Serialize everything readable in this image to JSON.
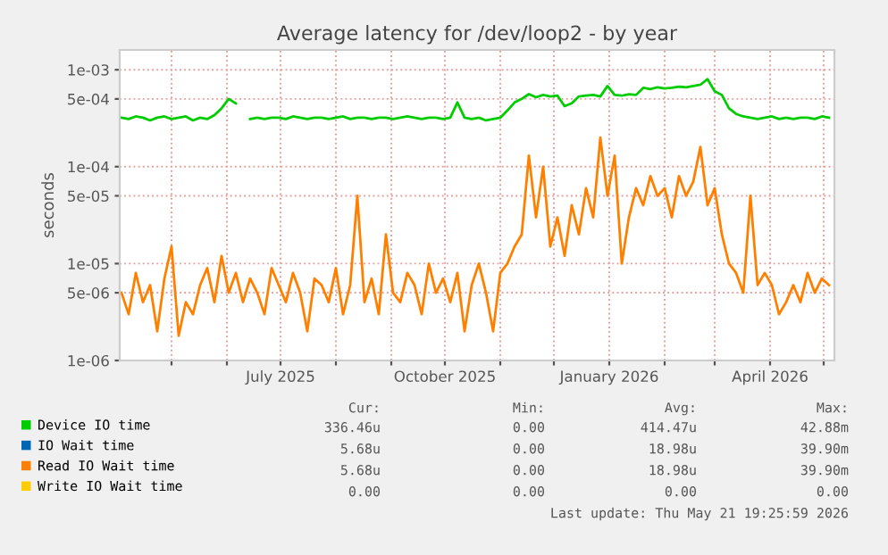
{
  "chart_data": {
    "type": "line",
    "title": "Average latency for /dev/loop2 - by year",
    "ylabel": "seconds",
    "log": "y",
    "ylim": [
      1e-06,
      0.0016
    ],
    "yticks": [
      {
        "value": 1e-06,
        "label": "1e-06"
      },
      {
        "value": 5e-06,
        "label": "5e-06"
      },
      {
        "value": 1e-05,
        "label": "1e-05"
      },
      {
        "value": 5e-05,
        "label": "5e-05"
      },
      {
        "value": 0.0001,
        "label": "1e-04"
      },
      {
        "value": 0.0005,
        "label": "5e-04"
      },
      {
        "value": 0.001,
        "label": "1e-03"
      }
    ],
    "xlim": [
      "2025-04-02",
      "2026-05-07"
    ],
    "xticks": [
      {
        "value": "2025-05-01",
        "label": null
      },
      {
        "value": "2025-06-01",
        "label": null
      },
      {
        "value": "2025-07-01",
        "label": "July 2025"
      },
      {
        "value": "2025-08-01",
        "label": null
      },
      {
        "value": "2025-09-01",
        "label": null
      },
      {
        "value": "2025-10-01",
        "label": "October 2025"
      },
      {
        "value": "2025-11-01",
        "label": null
      },
      {
        "value": "2025-12-01",
        "label": null
      },
      {
        "value": "2026-01-01",
        "label": "January 2026"
      },
      {
        "value": "2026-02-01",
        "label": null
      },
      {
        "value": "2026-03-01",
        "label": null
      },
      {
        "value": "2026-04-01",
        "label": "April 2026"
      },
      {
        "value": "2026-05-01",
        "label": null
      }
    ],
    "x": [
      "2025-04-03",
      "2025-04-07",
      "2025-04-11",
      "2025-04-15",
      "2025-04-19",
      "2025-04-23",
      "2025-04-27",
      "2025-05-01",
      "2025-05-05",
      "2025-05-09",
      "2025-05-13",
      "2025-05-17",
      "2025-05-21",
      "2025-05-25",
      "2025-05-29",
      "2025-06-02",
      "2025-06-06",
      "2025-06-10",
      "2025-06-14",
      "2025-06-18",
      "2025-06-22",
      "2025-06-26",
      "2025-06-30",
      "2025-07-04",
      "2025-07-08",
      "2025-07-12",
      "2025-07-16",
      "2025-07-20",
      "2025-07-24",
      "2025-07-28",
      "2025-08-01",
      "2025-08-05",
      "2025-08-09",
      "2025-08-13",
      "2025-08-17",
      "2025-08-21",
      "2025-08-25",
      "2025-08-29",
      "2025-09-02",
      "2025-09-06",
      "2025-09-10",
      "2025-09-14",
      "2025-09-18",
      "2025-09-22",
      "2025-09-26",
      "2025-09-30",
      "2025-10-04",
      "2025-10-08",
      "2025-10-12",
      "2025-10-16",
      "2025-10-20",
      "2025-10-24",
      "2025-10-28",
      "2025-11-01",
      "2025-11-05",
      "2025-11-09",
      "2025-11-13",
      "2025-11-17",
      "2025-11-21",
      "2025-11-25",
      "2025-11-29",
      "2025-12-03",
      "2025-12-07",
      "2025-12-11",
      "2025-12-15",
      "2025-12-19",
      "2025-12-23",
      "2025-12-27",
      "2025-12-31",
      "2026-01-04",
      "2026-01-08",
      "2026-01-12",
      "2026-01-16",
      "2026-01-20",
      "2026-01-24",
      "2026-01-28",
      "2026-02-01",
      "2026-02-05",
      "2026-02-09",
      "2026-02-13",
      "2026-02-17",
      "2026-02-21",
      "2026-02-25",
      "2026-03-01",
      "2026-03-05",
      "2026-03-09",
      "2026-03-13",
      "2026-03-17",
      "2026-03-21",
      "2026-03-25",
      "2026-03-29",
      "2026-04-02",
      "2026-04-06",
      "2026-04-10",
      "2026-04-14",
      "2026-04-18",
      "2026-04-22",
      "2026-04-26",
      "2026-04-30",
      "2026-05-04"
    ],
    "series": [
      {
        "name": "Device IO time",
        "color": "#00cc00",
        "values": [
          0.00032,
          0.00031,
          0.00033,
          0.00032,
          0.0003,
          0.00032,
          0.00033,
          0.00031,
          0.00032,
          0.00033,
          0.0003,
          0.00032,
          0.00031,
          0.00034,
          0.0004,
          0.0005,
          0.00045,
          null,
          0.00031,
          0.00032,
          0.00031,
          0.00032,
          0.00032,
          0.00031,
          0.00033,
          0.00032,
          0.00031,
          0.00032,
          0.00032,
          0.00031,
          0.00032,
          0.00033,
          0.00031,
          0.00032,
          0.00032,
          0.00031,
          0.00032,
          0.00032,
          0.00031,
          0.00032,
          0.00033,
          0.00032,
          0.00031,
          0.00032,
          0.00032,
          0.00031,
          0.00032,
          0.00046,
          0.00032,
          0.00031,
          0.00032,
          0.0003,
          0.00031,
          0.00032,
          0.00038,
          0.00046,
          0.0005,
          0.00056,
          0.00052,
          0.00055,
          0.00053,
          0.00054,
          0.00042,
          0.00045,
          0.00053,
          0.00054,
          0.00055,
          0.00053,
          0.00068,
          0.00055,
          0.00054,
          0.00056,
          0.00055,
          0.00065,
          0.00063,
          0.00066,
          0.00064,
          0.00065,
          0.00067,
          0.00066,
          0.00068,
          0.0007,
          0.0008,
          0.0006,
          0.00055,
          0.0004,
          0.00035,
          0.00033,
          0.00032,
          0.00031,
          0.00032,
          0.00033,
          0.00031,
          0.00032,
          0.00031,
          0.00032,
          0.00032,
          0.00031,
          0.00033,
          0.00032
        ]
      },
      {
        "name": "IO Wait time",
        "color": "#0066b3",
        "values": [
          null,
          null,
          null,
          null,
          null,
          null,
          null,
          null,
          null,
          null,
          null,
          null,
          null,
          null,
          null,
          null,
          null,
          null,
          null,
          null,
          null,
          null,
          null,
          null,
          null,
          null,
          null,
          null,
          null,
          null,
          null,
          null,
          null,
          null,
          null,
          null,
          null,
          null,
          null,
          null,
          null,
          null,
          null,
          null,
          null,
          null,
          null,
          null,
          null,
          null,
          null,
          null,
          null,
          null,
          null,
          null,
          null,
          null,
          null,
          null,
          null,
          null,
          null,
          null,
          null,
          null,
          null,
          null,
          null,
          null,
          null,
          null,
          null,
          null,
          null,
          null,
          null,
          null,
          null,
          null,
          null,
          null,
          null,
          null,
          null,
          null,
          null,
          null,
          null,
          null,
          null,
          null,
          null,
          null,
          null,
          null,
          null,
          null,
          null,
          null
        ]
      },
      {
        "name": "Read IO Wait time",
        "color": "#ff8000",
        "values": [
          5e-06,
          3e-06,
          8e-06,
          4e-06,
          6e-06,
          2e-06,
          7e-06,
          1.5e-05,
          1.8e-06,
          4e-06,
          3e-06,
          6e-06,
          9e-06,
          4e-06,
          1.2e-05,
          5e-06,
          8e-06,
          4e-06,
          7e-06,
          5e-06,
          3e-06,
          9e-06,
          6e-06,
          4e-06,
          8e-06,
          5e-06,
          2e-06,
          7e-06,
          6e-06,
          4e-06,
          9e-06,
          3e-06,
          6e-06,
          5e-05,
          4e-06,
          7e-06,
          3e-06,
          2e-05,
          5e-06,
          4e-06,
          8e-06,
          6e-06,
          3e-06,
          1e-05,
          5e-06,
          7e-06,
          4e-06,
          8e-06,
          2e-06,
          6e-06,
          1e-05,
          5e-06,
          2e-06,
          8e-06,
          1e-05,
          1.5e-05,
          2e-05,
          0.00013,
          3e-05,
          0.0001,
          1.5e-05,
          3e-05,
          1.2e-05,
          4e-05,
          2e-05,
          6e-05,
          3e-05,
          0.0002,
          5e-05,
          0.00013,
          1e-05,
          3e-05,
          6e-05,
          4e-05,
          8e-05,
          5e-05,
          6e-05,
          3e-05,
          8e-05,
          5e-05,
          7e-05,
          0.00016,
          4e-05,
          6e-05,
          2e-05,
          1e-05,
          8e-06,
          5e-06,
          5e-05,
          6e-06,
          8e-06,
          6e-06,
          3e-06,
          4e-06,
          6e-06,
          4e-06,
          8e-06,
          5e-06,
          7e-06,
          6e-06
        ]
      },
      {
        "name": "Write IO Wait time",
        "color": "#ffcc00",
        "values": [
          null,
          null,
          null,
          null,
          null,
          null,
          null,
          null,
          null,
          null,
          null,
          null,
          null,
          null,
          null,
          null,
          null,
          null,
          null,
          null,
          null,
          null,
          null,
          null,
          null,
          null,
          null,
          null,
          null,
          null,
          null,
          null,
          null,
          null,
          null,
          null,
          null,
          null,
          null,
          null,
          null,
          null,
          null,
          null,
          null,
          null,
          null,
          null,
          null,
          null,
          null,
          null,
          null,
          null,
          null,
          null,
          null,
          null,
          null,
          null,
          null,
          null,
          null,
          null,
          null,
          null,
          null,
          null,
          null,
          null,
          null,
          null,
          null,
          null,
          null,
          null,
          null,
          null,
          null,
          null,
          null,
          null,
          null,
          null,
          null,
          null,
          null,
          null,
          null,
          null,
          null,
          null,
          null,
          null,
          null,
          null,
          null,
          null,
          null,
          null
        ]
      }
    ],
    "grid": true,
    "legend": "bottom left",
    "annotations": [
      "Cur:",
      "Min:",
      "Avg:",
      "Max:",
      "336.46u",
      "0.00",
      "414.47u",
      "42.88m",
      "5.68u",
      "0.00",
      "18.98u",
      "39.90m",
      "5.68u",
      "0.00",
      "18.98u",
      "39.90m",
      "0.00",
      "0.00",
      "0.00",
      "0.00",
      "Last update: Thu May 21 19:25:59 2026"
    ]
  }
}
